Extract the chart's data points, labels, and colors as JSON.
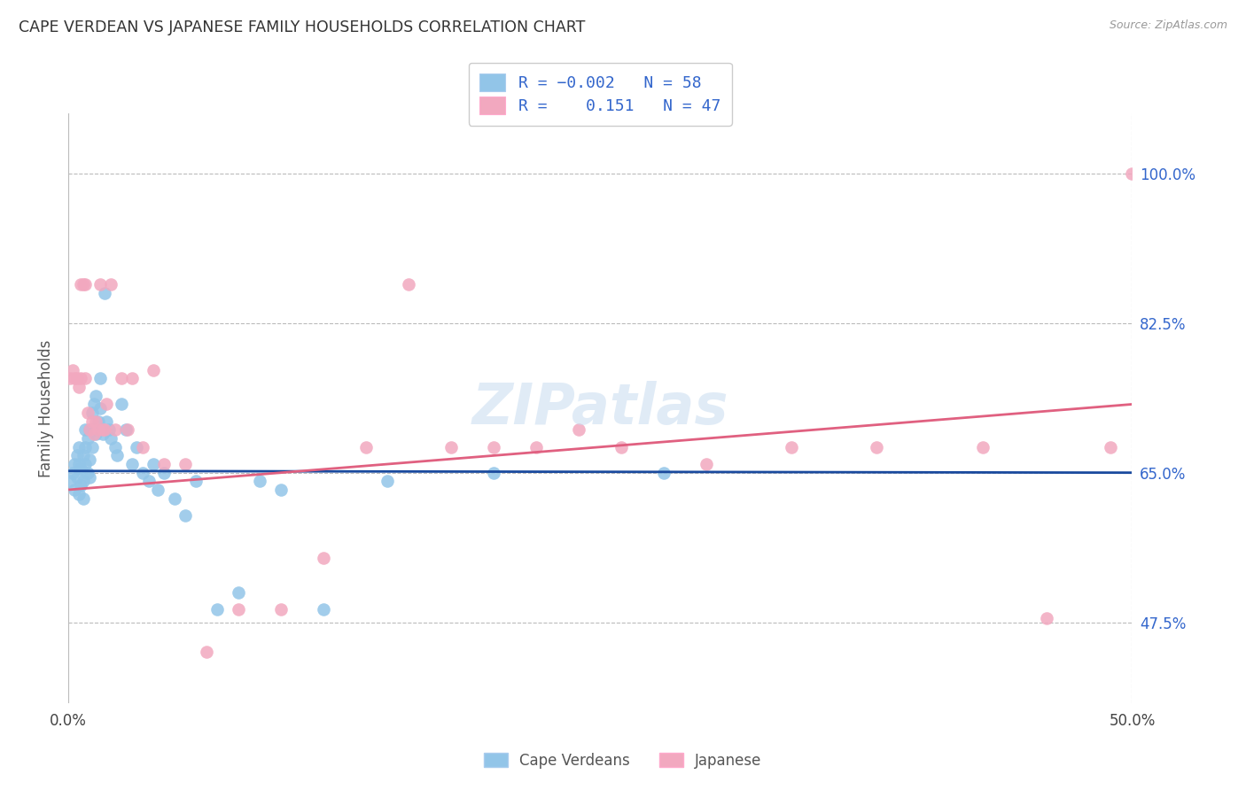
{
  "title": "CAPE VERDEAN VS JAPANESE FAMILY HOUSEHOLDS CORRELATION CHART",
  "source": "Source: ZipAtlas.com",
  "ylabel": "Family Households",
  "ytick_labels": [
    "47.5%",
    "65.0%",
    "82.5%",
    "100.0%"
  ],
  "ytick_values": [
    0.475,
    0.65,
    0.825,
    1.0
  ],
  "xrange": [
    0.0,
    0.5
  ],
  "yrange": [
    0.38,
    1.07
  ],
  "R_blue": -0.002,
  "N_blue": 58,
  "R_pink": 0.151,
  "N_pink": 47,
  "legend_label_blue": "Cape Verdeans",
  "legend_label_pink": "Japanese",
  "color_blue": "#92C5E8",
  "color_pink": "#F2A8BF",
  "line_color_blue": "#1A4A9E",
  "line_color_pink": "#E06080",
  "grid_color": "#BBBBBB",
  "watermark": "ZIPatlas",
  "blue_x": [
    0.001,
    0.002,
    0.003,
    0.003,
    0.004,
    0.004,
    0.005,
    0.005,
    0.005,
    0.006,
    0.006,
    0.007,
    0.007,
    0.007,
    0.008,
    0.008,
    0.008,
    0.009,
    0.009,
    0.01,
    0.01,
    0.01,
    0.011,
    0.011,
    0.012,
    0.012,
    0.013,
    0.013,
    0.014,
    0.015,
    0.015,
    0.016,
    0.017,
    0.018,
    0.019,
    0.02,
    0.022,
    0.023,
    0.025,
    0.027,
    0.03,
    0.032,
    0.035,
    0.038,
    0.04,
    0.042,
    0.045,
    0.05,
    0.055,
    0.06,
    0.07,
    0.08,
    0.09,
    0.1,
    0.12,
    0.15,
    0.2,
    0.28
  ],
  "blue_y": [
    0.64,
    0.65,
    0.63,
    0.66,
    0.645,
    0.67,
    0.625,
    0.66,
    0.68,
    0.635,
    0.655,
    0.62,
    0.64,
    0.67,
    0.66,
    0.68,
    0.7,
    0.65,
    0.69,
    0.645,
    0.665,
    0.7,
    0.72,
    0.68,
    0.7,
    0.73,
    0.695,
    0.74,
    0.71,
    0.725,
    0.76,
    0.695,
    0.86,
    0.71,
    0.7,
    0.69,
    0.68,
    0.67,
    0.73,
    0.7,
    0.66,
    0.68,
    0.65,
    0.64,
    0.66,
    0.63,
    0.65,
    0.62,
    0.6,
    0.64,
    0.49,
    0.51,
    0.64,
    0.63,
    0.49,
    0.64,
    0.65,
    0.65
  ],
  "pink_x": [
    0.001,
    0.002,
    0.003,
    0.004,
    0.005,
    0.006,
    0.006,
    0.007,
    0.008,
    0.008,
    0.009,
    0.01,
    0.011,
    0.012,
    0.013,
    0.014,
    0.015,
    0.016,
    0.017,
    0.018,
    0.02,
    0.022,
    0.025,
    0.028,
    0.03,
    0.035,
    0.04,
    0.045,
    0.055,
    0.065,
    0.08,
    0.1,
    0.12,
    0.14,
    0.16,
    0.18,
    0.2,
    0.22,
    0.24,
    0.26,
    0.3,
    0.34,
    0.38,
    0.43,
    0.46,
    0.49,
    0.5
  ],
  "pink_y": [
    0.76,
    0.77,
    0.76,
    0.76,
    0.75,
    0.87,
    0.76,
    0.87,
    0.76,
    0.87,
    0.72,
    0.7,
    0.71,
    0.695,
    0.71,
    0.7,
    0.87,
    0.7,
    0.7,
    0.73,
    0.87,
    0.7,
    0.76,
    0.7,
    0.76,
    0.68,
    0.77,
    0.66,
    0.66,
    0.44,
    0.49,
    0.49,
    0.55,
    0.68,
    0.87,
    0.68,
    0.68,
    0.68,
    0.7,
    0.68,
    0.66,
    0.68,
    0.68,
    0.68,
    0.48,
    0.68,
    1.0
  ],
  "blue_line": [
    0.0,
    0.5,
    0.652,
    0.65
  ],
  "pink_line": [
    0.0,
    0.5,
    0.63,
    0.73
  ]
}
